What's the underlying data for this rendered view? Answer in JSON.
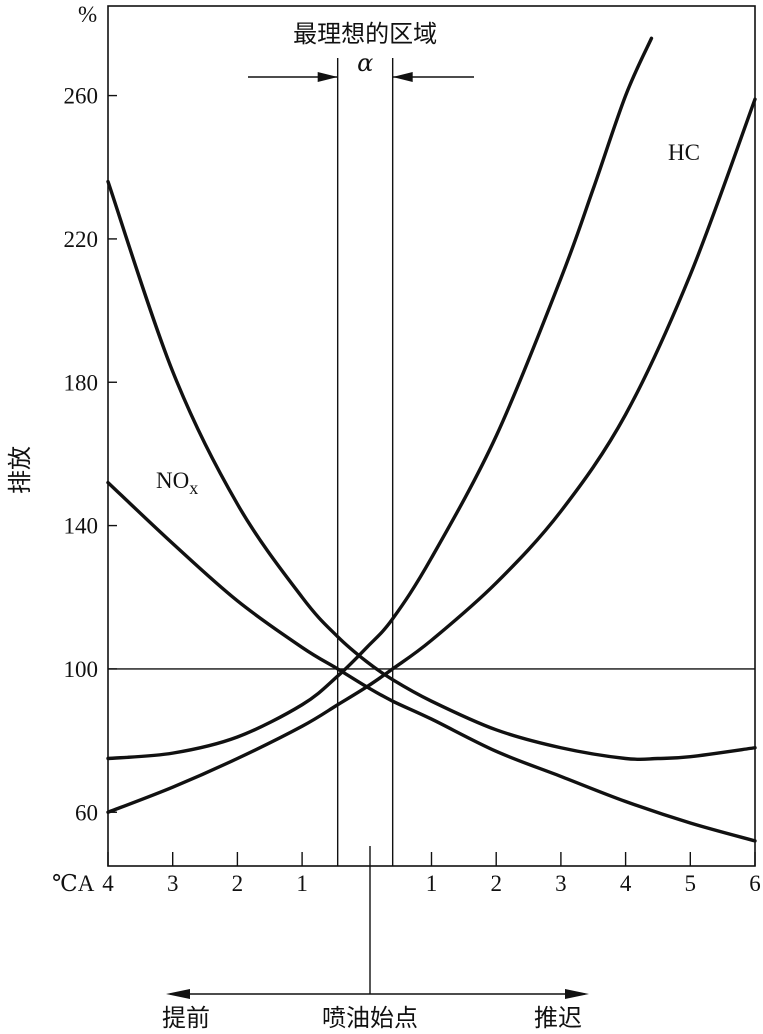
{
  "chart_data": {
    "type": "line",
    "y_unit_label": "%",
    "ylabel": "排放",
    "ylim": [
      45,
      285
    ],
    "yticks": [
      60,
      100,
      140,
      180,
      220,
      260
    ],
    "xlim": [
      -4,
      6
    ],
    "x_unit_label": "℃A",
    "xtick_values": [
      -4,
      -3,
      -2,
      -1,
      1,
      2,
      3,
      4,
      5,
      6
    ],
    "xtick_labels": [
      "4",
      "3",
      "2",
      "1",
      "1",
      "2",
      "3",
      "4",
      "5",
      "6"
    ],
    "reference_line_y": 100,
    "optimal_region": {
      "title": "最理想的区域",
      "symbol": "α",
      "x_range": [
        -0.45,
        0.4
      ]
    },
    "series": [
      {
        "name": "HC",
        "x": [
          -4,
          -3,
          -2,
          -1,
          -0.45,
          0,
          0.4,
          1,
          2,
          3,
          4,
          4.5,
          5,
          6
        ],
        "values": [
          236,
          183,
          146,
          120,
          109,
          102,
          97,
          91,
          83,
          78,
          75,
          75,
          75.5,
          78
        ]
      },
      {
        "name": "NOx",
        "x": [
          -4,
          -3,
          -2,
          -1,
          -0.45,
          0,
          0.4,
          1,
          2,
          3,
          4,
          5,
          6
        ],
        "values": [
          152,
          135,
          119,
          106,
          100,
          95,
          91,
          86,
          77,
          70,
          63,
          57,
          52
        ]
      },
      {
        "name": "",
        "x": [
          -4,
          -3,
          -2,
          -1,
          -0.45,
          0,
          0.4,
          1,
          2,
          3,
          3.5,
          4,
          4.4
        ],
        "values": [
          75,
          76.5,
          81,
          90,
          98,
          106,
          114,
          131,
          165,
          209,
          234,
          260,
          276
        ]
      },
      {
        "name": "",
        "x": [
          -4,
          -3,
          -2,
          -1,
          -0.45,
          0,
          0.4,
          1,
          2,
          3,
          4,
          5,
          6
        ],
        "values": [
          60,
          67,
          75,
          84,
          90,
          95,
          100,
          108,
          124,
          144,
          171,
          210,
          259
        ]
      }
    ],
    "labels": {
      "hc": "HC",
      "nox_main": "NO",
      "nox_sub": "x"
    },
    "bottom": {
      "left_label": "提前",
      "center_label": "喷油始点",
      "right_label": "推迟"
    }
  }
}
